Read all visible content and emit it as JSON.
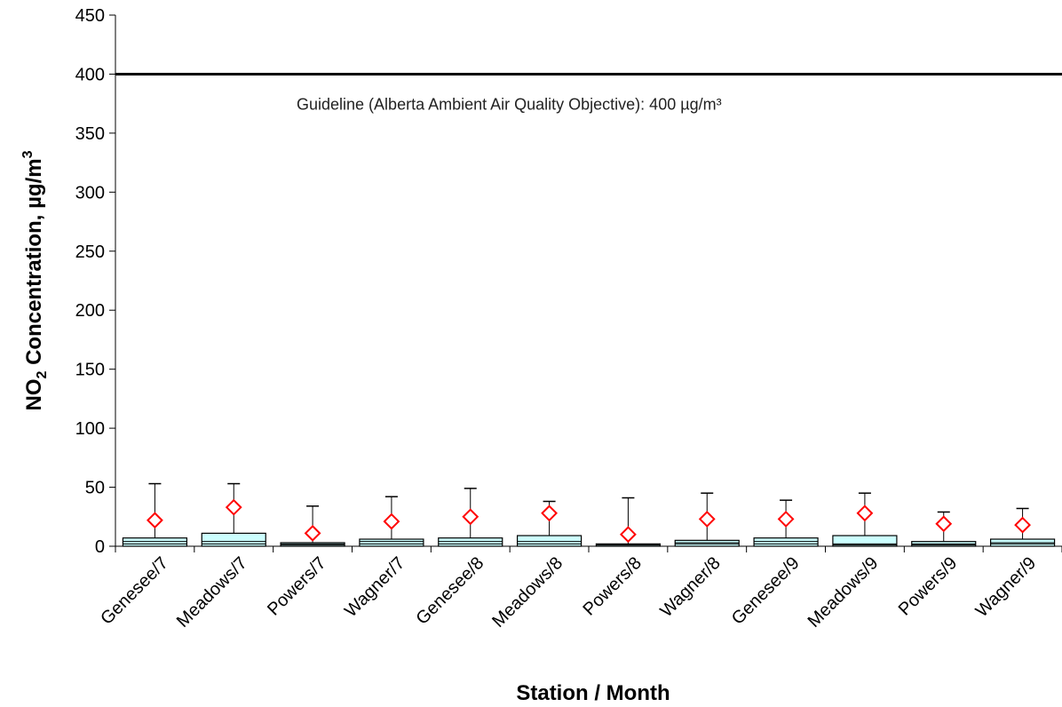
{
  "chart_data": {
    "type": "box",
    "xlabel": "Station / Month",
    "ylabel_main": "NO",
    "ylabel_sub": "2",
    "ylabel_rest": " Concentration, µg/m",
    "ylabel_sup": "3",
    "ylim": [
      0,
      450
    ],
    "yticks": [
      0,
      50,
      100,
      150,
      200,
      250,
      300,
      350,
      400,
      450
    ],
    "grid": false,
    "guideline": {
      "value": 400,
      "label": "Guideline (Alberta Ambient Air Quality Objective): 400 µg/m³"
    },
    "categories": [
      "Genesee/7",
      "Meadows/7",
      "Powers/7",
      "Wagner/7",
      "Genesee/8",
      "Meadows/8",
      "Powers/8",
      "Wagner/8",
      "Genesee/9",
      "Meadows/9",
      "Powers/9",
      "Wagner/9"
    ],
    "boxes": [
      {
        "whisker_low": 0,
        "q1": 2,
        "median": 4,
        "q3": 7,
        "whisker_high": 53,
        "max_marker": 22
      },
      {
        "whisker_low": 0,
        "q1": 2,
        "median": 4,
        "q3": 11,
        "whisker_high": 53,
        "max_marker": 33
      },
      {
        "whisker_low": 0,
        "q1": 1,
        "median": 2,
        "q3": 3,
        "whisker_high": 34,
        "max_marker": 11
      },
      {
        "whisker_low": 0,
        "q1": 2,
        "median": 4,
        "q3": 6,
        "whisker_high": 42,
        "max_marker": 21
      },
      {
        "whisker_low": 0,
        "q1": 2,
        "median": 4,
        "q3": 7,
        "whisker_high": 49,
        "max_marker": 25
      },
      {
        "whisker_low": 0,
        "q1": 2,
        "median": 4,
        "q3": 9,
        "whisker_high": 38,
        "max_marker": 28
      },
      {
        "whisker_low": 0,
        "q1": 1,
        "median": 1,
        "q3": 2,
        "whisker_high": 41,
        "max_marker": 10
      },
      {
        "whisker_low": 0,
        "q1": 2,
        "median": 3,
        "q3": 5,
        "whisker_high": 45,
        "max_marker": 23
      },
      {
        "whisker_low": 0,
        "q1": 2,
        "median": 4,
        "q3": 7,
        "whisker_high": 39,
        "max_marker": 23
      },
      {
        "whisker_low": 0,
        "q1": 1,
        "median": 2,
        "q3": 9,
        "whisker_high": 45,
        "max_marker": 28
      },
      {
        "whisker_low": 0,
        "q1": 1,
        "median": 2,
        "q3": 4,
        "whisker_high": 29,
        "max_marker": 19
      },
      {
        "whisker_low": 0,
        "q1": 2,
        "median": 3,
        "q3": 6,
        "whisker_high": 32,
        "max_marker": 18
      }
    ],
    "colors": {
      "box_fill": "#ccffff",
      "box_stroke": "#000000",
      "marker": "#ff0000",
      "guideline": "#000000"
    }
  }
}
